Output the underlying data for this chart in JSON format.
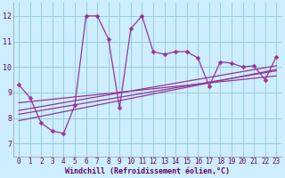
{
  "title": "",
  "xlabel": "Windchill (Refroidissement éolien,°C)",
  "bg_color": "#cceeff",
  "grid_color": "#99ccdd",
  "line_color": "#993399",
  "xlim": [
    -0.5,
    23.5
  ],
  "ylim": [
    6.5,
    12.5
  ],
  "xticks": [
    0,
    1,
    2,
    3,
    4,
    5,
    6,
    7,
    8,
    9,
    10,
    11,
    12,
    13,
    14,
    15,
    16,
    17,
    18,
    19,
    20,
    21,
    22,
    23
  ],
  "yticks": [
    7,
    8,
    9,
    10,
    11,
    12
  ],
  "main_y": [
    9.3,
    8.8,
    7.8,
    7.5,
    7.4,
    8.5,
    12.0,
    12.0,
    11.1,
    8.4,
    11.5,
    12.0,
    10.6,
    10.5,
    10.6,
    10.6,
    10.35,
    9.25,
    10.2,
    10.15,
    10.0,
    10.05,
    9.5,
    10.4
  ],
  "trend_lines": [
    {
      "x0": 0,
      "y0": 8.6,
      "x1": 23,
      "y1": 9.65
    },
    {
      "x0": 0,
      "y0": 8.3,
      "x1": 23,
      "y1": 10.05
    },
    {
      "x0": 0,
      "y0": 8.15,
      "x1": 23,
      "y1": 9.85
    },
    {
      "x0": 0,
      "y0": 7.9,
      "x1": 23,
      "y1": 9.9
    }
  ],
  "marker": "D",
  "marker_size": 2.5,
  "line_width": 0.9,
  "tick_fontsize": 5.5,
  "xlabel_fontsize": 6.0
}
